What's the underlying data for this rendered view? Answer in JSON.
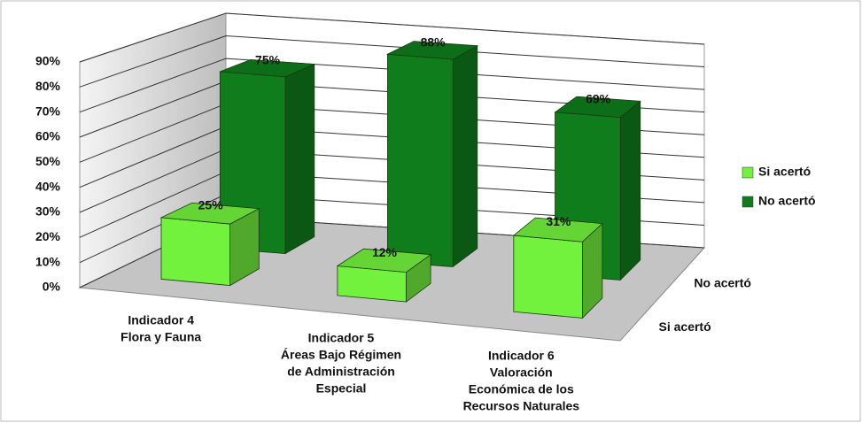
{
  "chart_data": {
    "type": "bar3d",
    "categories": [
      [
        "Indicador 4",
        "Flora y Fauna"
      ],
      [
        "Indicador 5",
        "Áreas Bajo Régimen",
        "de Administración",
        "Especial"
      ],
      [
        "Indicador 6",
        "Valoración",
        "Económica de los",
        "Recursos Naturales"
      ]
    ],
    "series": [
      {
        "name": "Si acertó",
        "color": "#72f23c",
        "values": [
          25,
          12,
          31
        ],
        "value_labels": [
          "25%",
          "12%",
          "31%"
        ]
      },
      {
        "name": "No acertó",
        "color": "#0f7d1c",
        "values": [
          75,
          88,
          69
        ],
        "value_labels": [
          "75%",
          "88%",
          "69%"
        ]
      }
    ],
    "ylim": [
      0,
      90
    ],
    "yticks": [
      {
        "value": 0,
        "label": "0%"
      },
      {
        "value": 10,
        "label": "10%"
      },
      {
        "value": 20,
        "label": "20%"
      },
      {
        "value": 30,
        "label": "30%"
      },
      {
        "value": 40,
        "label": "40%"
      },
      {
        "value": 50,
        "label": "50%"
      },
      {
        "value": 60,
        "label": "60%"
      },
      {
        "value": 70,
        "label": "70%"
      },
      {
        "value": 80,
        "label": "80%"
      },
      {
        "value": 90,
        "label": "90%"
      }
    ],
    "grid": true,
    "legend": "right"
  }
}
